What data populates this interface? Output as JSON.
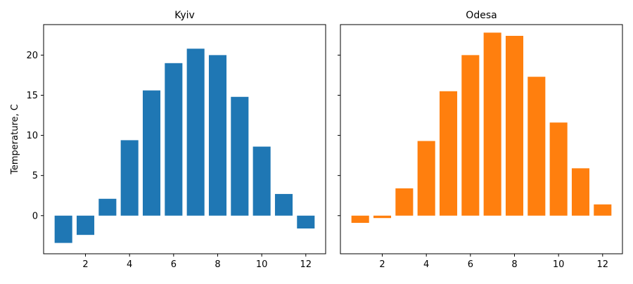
{
  "chart_data": [
    {
      "type": "bar",
      "title": "Kyiv",
      "xlabel": "",
      "ylabel": "Temperature, C",
      "color": "#1f77b4",
      "x": [
        1,
        2,
        3,
        4,
        5,
        6,
        7,
        8,
        9,
        10,
        11,
        12
      ],
      "values": [
        -3.4,
        -2.4,
        2.1,
        9.4,
        15.6,
        19.0,
        20.8,
        20.0,
        14.8,
        8.6,
        2.7,
        -1.6
      ],
      "xlim": [
        0.1,
        12.9
      ],
      "ylim": [
        -4.75,
        23.8
      ],
      "xticks": [
        2,
        4,
        6,
        8,
        10,
        12
      ],
      "yticks": [
        0,
        5,
        10,
        15,
        20
      ],
      "grid": false
    },
    {
      "type": "bar",
      "title": "Odesa",
      "xlabel": "",
      "ylabel": "",
      "color": "#ff7f0e",
      "x": [
        1,
        2,
        3,
        4,
        5,
        6,
        7,
        8,
        9,
        10,
        11,
        12
      ],
      "values": [
        -0.9,
        -0.3,
        3.4,
        9.3,
        15.5,
        20.0,
        22.8,
        22.4,
        17.3,
        11.6,
        5.9,
        1.4
      ],
      "xlim": [
        0.1,
        12.9
      ],
      "ylim": [
        -4.75,
        23.8
      ],
      "xticks": [
        2,
        4,
        6,
        8,
        10,
        12
      ],
      "yticks": [
        0,
        5,
        10,
        15,
        20
      ],
      "grid": false
    }
  ]
}
